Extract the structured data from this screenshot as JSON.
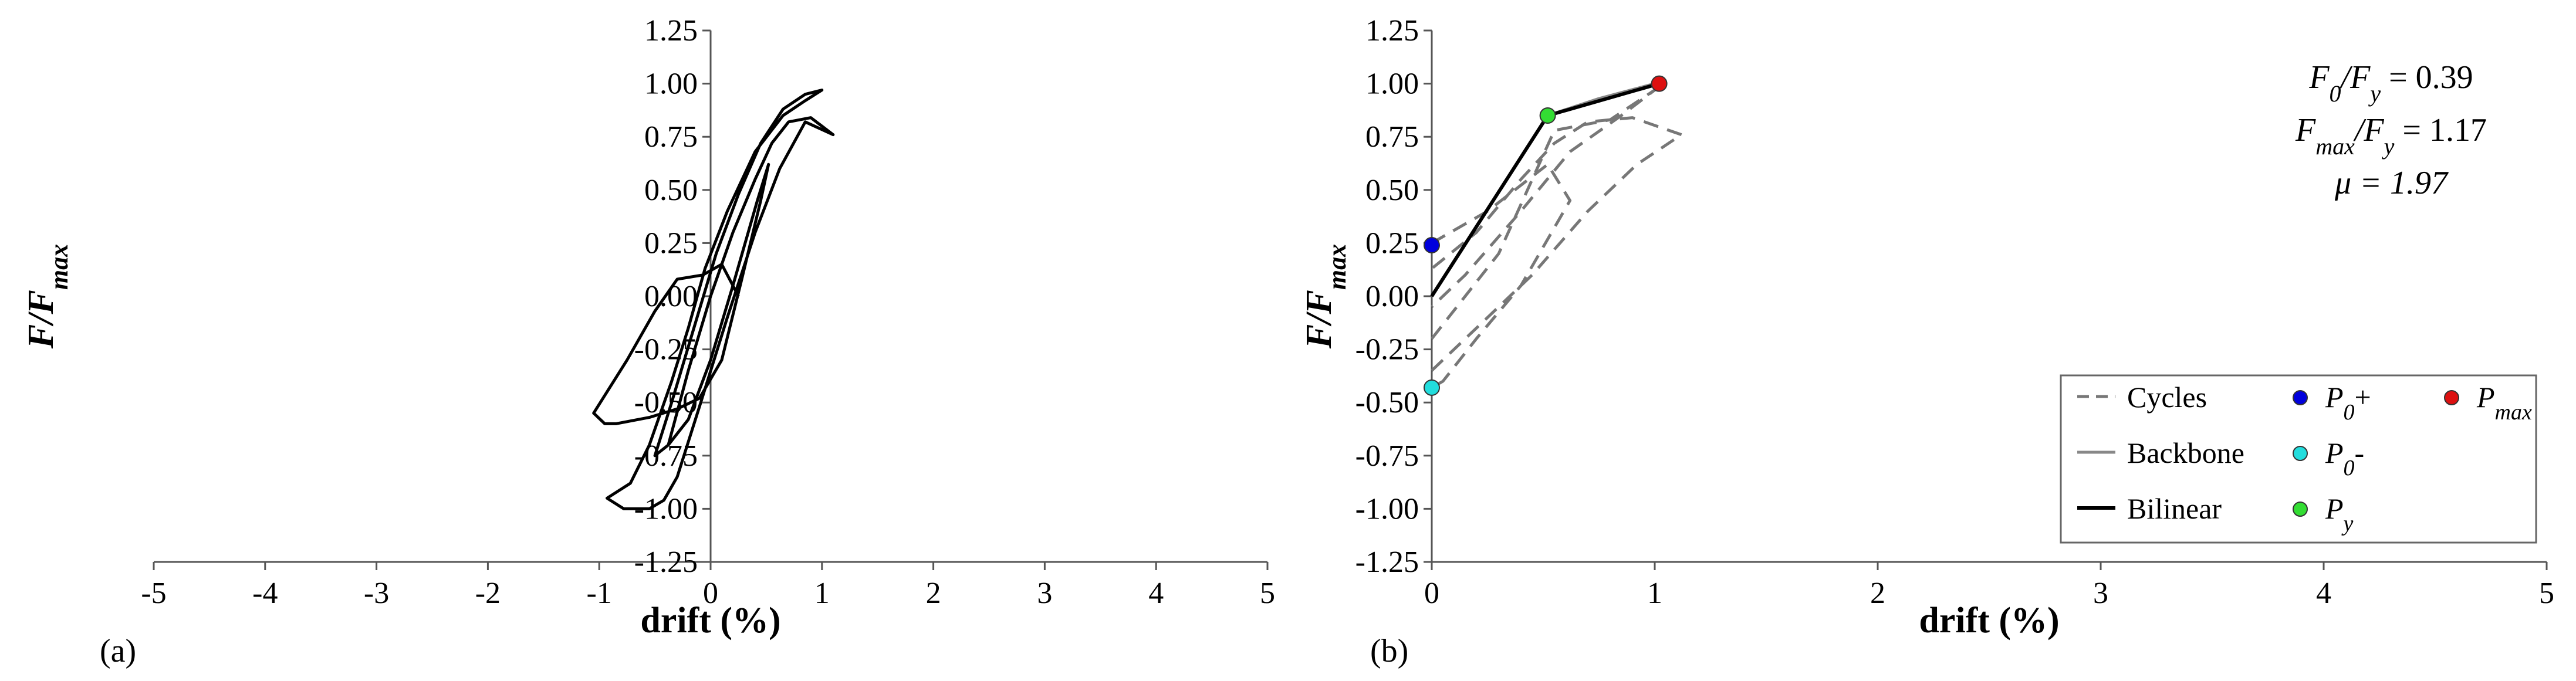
{
  "chart_data": [
    {
      "panel_label": "(a)",
      "type": "line",
      "xlabel": "drift (%)",
      "ylabel": "F/F",
      "ylabel_sub": "max",
      "xlim": [
        -5,
        5
      ],
      "ylim": [
        -1.25,
        1.25
      ],
      "xticks": [
        -5,
        -4,
        -3,
        -2,
        -1,
        0,
        1,
        2,
        3,
        4,
        5
      ],
      "yticks": [
        1.25,
        1.0,
        0.75,
        0.5,
        0.25,
        0.0,
        -0.25,
        -0.5,
        -0.75,
        -1.0,
        -1.25
      ],
      "ytick_labels": [
        "1.25",
        "1.00",
        "0.75",
        "0.50",
        "0.25",
        "0.00",
        "-0.25",
        "-0.50",
        "-0.75",
        "-1.00",
        "-1.25"
      ],
      "grid": false,
      "color": "#000000",
      "series": [
        {
          "x": [
            0.25,
            0.1,
            -0.07,
            -0.3,
            -0.5,
            -0.75,
            -1.05,
            -0.95,
            -0.85,
            -0.55,
            -0.3,
            -0.1,
            0.1,
            0.28,
            0.45,
            0.52,
            0.42,
            0.2,
            0.0,
            -0.2,
            -0.38,
            -0.5,
            -0.35,
            -0.15,
            0.05,
            0.25,
            0.45,
            0.65,
            0.85,
            1.0,
            0.85,
            0.65,
            0.4,
            0.15,
            -0.05,
            -0.2,
            -0.35,
            -0.55,
            -0.72,
            -0.93,
            -0.78,
            -0.55,
            -0.42,
            -0.3,
            -0.1,
            0.15,
            0.4,
            0.62,
            0.85,
            1.1,
            0.9,
            0.7,
            0.55,
            0.4,
            0.2,
            0.0,
            -0.2,
            -0.38
          ],
          "y": [
            0.0,
            0.15,
            0.1,
            0.08,
            -0.07,
            -0.3,
            -0.55,
            -0.6,
            -0.6,
            -0.57,
            -0.53,
            -0.48,
            -0.3,
            0.08,
            0.45,
            0.62,
            0.45,
            0.05,
            -0.3,
            -0.58,
            -0.7,
            -0.75,
            -0.5,
            -0.15,
            0.2,
            0.48,
            0.72,
            0.88,
            0.95,
            0.97,
            0.92,
            0.85,
            0.68,
            0.4,
            0.13,
            -0.15,
            -0.4,
            -0.7,
            -0.88,
            -0.95,
            -1.0,
            -1.0,
            -0.96,
            -0.85,
            -0.52,
            -0.1,
            0.3,
            0.6,
            0.82,
            0.76,
            0.84,
            0.82,
            0.72,
            0.55,
            0.3,
            0.0,
            -0.35,
            -0.7
          ]
        }
      ]
    },
    {
      "panel_label": "(b)",
      "type": "line",
      "xlabel": "drift (%)",
      "ylabel": "F/F",
      "ylabel_sub": "max",
      "xlim": [
        0,
        5
      ],
      "ylim": [
        -1.25,
        1.25
      ],
      "xticks": [
        0,
        1,
        2,
        3,
        4,
        5
      ],
      "yticks": [
        1.25,
        1.0,
        0.75,
        0.5,
        0.25,
        0.0,
        -0.25,
        -0.5,
        -0.75,
        -1.0,
        -1.25
      ],
      "ytick_labels": [
        "1.25",
        "1.00",
        "0.75",
        "0.50",
        "0.25",
        "0.00",
        "-0.25",
        "-0.50",
        "-0.75",
        "-1.00",
        "-1.25"
      ],
      "grid": false,
      "series": [
        {
          "name": "Cycles",
          "style": "dashed",
          "color": "#777777",
          "segments": [
            {
              "x": [
                0.0,
                0.25,
                0.52,
                0.62,
                0.4,
                0.2,
                0.05,
                0.0
              ],
              "y": [
                0.25,
                0.4,
                0.62,
                0.45,
                0.05,
                -0.2,
                -0.4,
                -0.43
              ]
            },
            {
              "x": [
                0.0,
                0.3,
                0.55,
                0.8,
                1.0,
                0.85,
                0.62,
                0.4,
                0.15,
                0.0
              ],
              "y": [
                -0.2,
                0.2,
                0.78,
                0.83,
                0.97,
                0.85,
                0.68,
                0.4,
                0.1,
                -0.05
              ]
            },
            {
              "x": [
                0.0,
                0.2,
                0.45,
                0.7,
                0.92,
                1.12
              ],
              "y": [
                -0.35,
                -0.15,
                0.1,
                0.4,
                0.62,
                0.76
              ]
            },
            {
              "x": [
                1.12,
                0.9,
                0.7,
                0.55,
                0.4,
                0.2,
                0.0
              ],
              "y": [
                0.76,
                0.84,
                0.82,
                0.72,
                0.55,
                0.3,
                0.13
              ]
            }
          ]
        },
        {
          "name": "Backbone",
          "style": "solid",
          "color": "#888888",
          "x": [
            0.52,
            0.75,
            1.0
          ],
          "y": [
            0.85,
            0.93,
            1.0
          ]
        },
        {
          "name": "Bilinear",
          "style": "solid",
          "color": "#000000",
          "x": [
            0.0,
            0.52,
            1.02
          ],
          "y": [
            0.0,
            0.85,
            1.0
          ]
        }
      ],
      "points": [
        {
          "name": "P0+",
          "x": 0.0,
          "y": 0.24,
          "color": "#0000dd"
        },
        {
          "name": "P0-",
          "x": 0.0,
          "y": -0.43,
          "color": "#22dddd"
        },
        {
          "name": "Py",
          "x": 0.52,
          "y": 0.85,
          "color": "#33dd33"
        },
        {
          "name": "Pmax",
          "x": 1.02,
          "y": 1.0,
          "color": "#dd1111"
        }
      ],
      "annotations": [
        {
          "base": "F",
          "sub": "0",
          "mid": "/F",
          "sub2": "y",
          "tail": " = 0.39"
        },
        {
          "base": "F",
          "sub": "max",
          "mid": "/F",
          "sub2": "y",
          "tail": " = 1.17"
        },
        {
          "text": "μ = 1.97"
        }
      ],
      "legend": {
        "placement": "bottom-right",
        "items": [
          {
            "label": "Cycles",
            "kind": "dashed",
            "color": "#777777"
          },
          {
            "label": "P",
            "sub": "0",
            "suffix": "+",
            "kind": "dot",
            "color": "#0000dd"
          },
          {
            "label": "P",
            "sub": "max",
            "suffix": "",
            "kind": "dot",
            "color": "#dd1111"
          },
          {
            "label": "Backbone",
            "kind": "solid",
            "color": "#888888"
          },
          {
            "label": "P",
            "sub": "0",
            "suffix": "-",
            "kind": "dot",
            "color": "#22dddd"
          },
          {
            "label": "Bilinear",
            "kind": "solid",
            "color": "#000000"
          },
          {
            "label": "P",
            "sub": "y",
            "suffix": "",
            "kind": "dot",
            "color": "#33dd33"
          }
        ]
      }
    }
  ]
}
